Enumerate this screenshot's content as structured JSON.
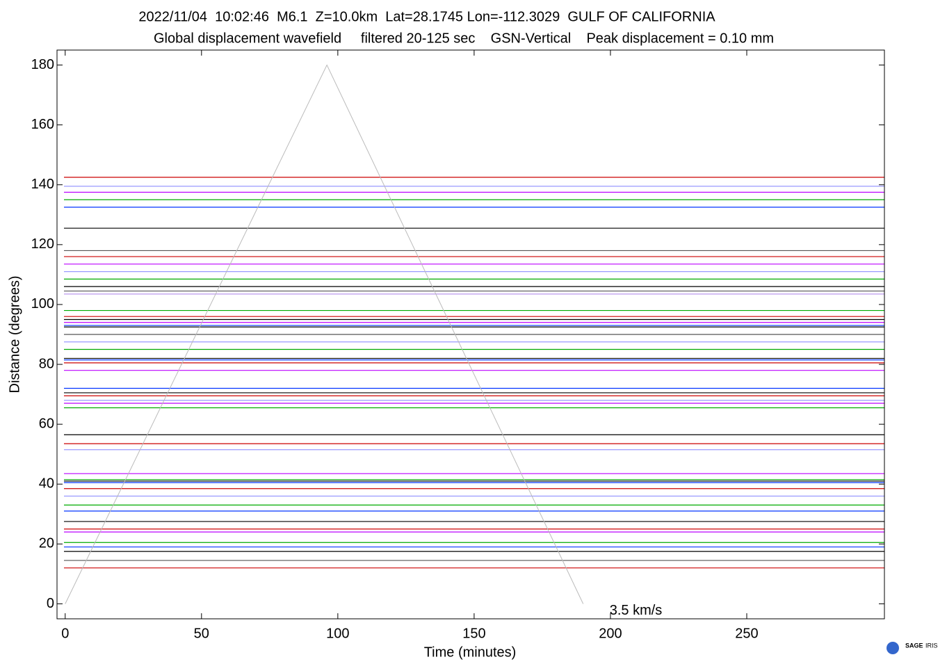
{
  "chart_data": {
    "type": "record-section",
    "title": "2022/11/04  10:02:46  M6.1  Z=10.0km  Lat=28.1745 Lon=-112.3029  GULF OF CALIFORNIA",
    "subtitle": "Global displacement wavefield     filtered 20-125 sec    GSN-Vertical    Peak displacement = 0.10 mm",
    "x_label": "Time (minutes)",
    "y_label": "Distance (degrees)",
    "xlim": [
      -3,
      300.5
    ],
    "xticks": [
      0,
      50,
      100,
      150,
      200,
      250
    ],
    "ylim": [
      -5,
      185
    ],
    "yticks": [
      0,
      20,
      40,
      60,
      80,
      100,
      120,
      140,
      160,
      180
    ],
    "reference_line": {
      "label": "3.5 km/s",
      "color": "#bbbbbb",
      "label_color": "#778888",
      "x": [
        0,
        96,
        190
      ],
      "y": [
        0,
        180,
        0
      ]
    },
    "traces": [
      {
        "distance": 142.5,
        "color": "#cc0000"
      },
      {
        "distance": 139.5,
        "color": "#9999ff"
      },
      {
        "distance": 137.5,
        "color": "#bb00ff"
      },
      {
        "distance": 135,
        "color": "#00aa00"
      },
      {
        "distance": 132.5,
        "color": "#0033ff"
      },
      {
        "distance": 125.5,
        "color": "#000000"
      },
      {
        "distance": 118,
        "color": "#555555"
      },
      {
        "distance": 116,
        "color": "#cc0000"
      },
      {
        "distance": 113.5,
        "color": "#bb00ff"
      },
      {
        "distance": 111,
        "color": "#9999ff"
      },
      {
        "distance": 108.5,
        "color": "#00aa00"
      },
      {
        "distance": 106,
        "color": "#000000"
      },
      {
        "distance": 104.5,
        "color": "#555555"
      },
      {
        "distance": 103.5,
        "color": "#bb99ee"
      },
      {
        "distance": 98,
        "color": "#00aa00"
      },
      {
        "distance": 96,
        "color": "#cc0000"
      },
      {
        "distance": 95,
        "color": "#000000"
      },
      {
        "distance": 94,
        "color": "#bb00ff"
      },
      {
        "distance": 93,
        "color": "#0033ff"
      },
      {
        "distance": 92.5,
        "color": "#000000"
      },
      {
        "distance": 90,
        "color": "#555555"
      },
      {
        "distance": 87.5,
        "color": "#9999ff"
      },
      {
        "distance": 85,
        "color": "#00aa00"
      },
      {
        "distance": 82,
        "color": "#000000"
      },
      {
        "distance": 81.5,
        "color": "#0033ff"
      },
      {
        "distance": 80.5,
        "color": "#cc0000"
      },
      {
        "distance": 78,
        "color": "#bb00ff"
      },
      {
        "distance": 72,
        "color": "#0033ff"
      },
      {
        "distance": 70.5,
        "color": "#000000"
      },
      {
        "distance": 69.5,
        "color": "#cc0000"
      },
      {
        "distance": 68,
        "color": "#9999ff"
      },
      {
        "distance": 67,
        "color": "#bb00ff"
      },
      {
        "distance": 65.5,
        "color": "#00aa00"
      },
      {
        "distance": 56.5,
        "color": "#000000"
      },
      {
        "distance": 53.5,
        "color": "#cc0000"
      },
      {
        "distance": 51.5,
        "color": "#9999ff"
      },
      {
        "distance": 43.5,
        "color": "#bb00ff"
      },
      {
        "distance": 41.5,
        "color": "#00aa00"
      },
      {
        "distance": 41,
        "color": "#000000"
      },
      {
        "distance": 40.5,
        "color": "#0033ff"
      },
      {
        "distance": 38.5,
        "color": "#cc0000"
      },
      {
        "distance": 36,
        "color": "#9999ff"
      },
      {
        "distance": 33,
        "color": "#00aa00"
      },
      {
        "distance": 31,
        "color": "#0033ff"
      },
      {
        "distance": 27.5,
        "color": "#000000"
      },
      {
        "distance": 25,
        "color": "#cc0000"
      },
      {
        "distance": 24,
        "color": "#bb00ff"
      },
      {
        "distance": 20.5,
        "color": "#00aa00"
      },
      {
        "distance": 19,
        "color": "#0033ff"
      },
      {
        "distance": 17.5,
        "color": "#000000"
      },
      {
        "distance": 14.5,
        "color": "#555555"
      },
      {
        "distance": 12,
        "color": "#cc0000"
      }
    ],
    "logo": {
      "name": "SAGE",
      "org": "IRIS"
    }
  }
}
